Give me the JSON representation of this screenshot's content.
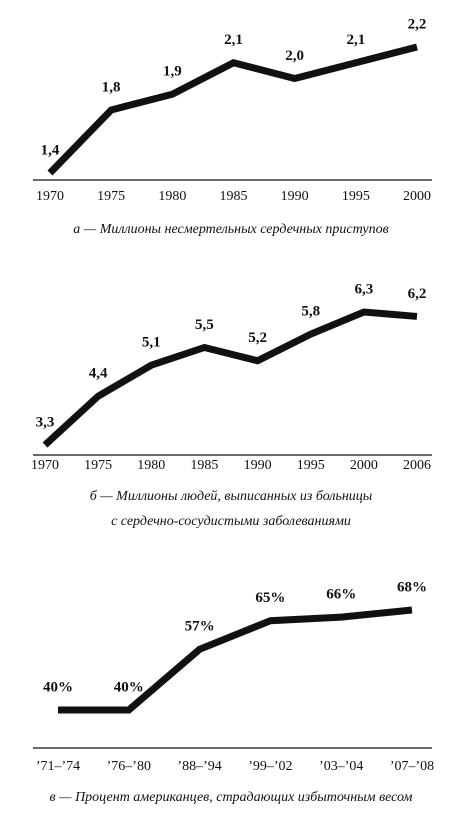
{
  "chart_data": [
    {
      "type": "line",
      "caption": [
        "а — Миллионы несмертельных сердечных приступов"
      ],
      "categories": [
        "1970",
        "1975",
        "1980",
        "1985",
        "1990",
        "1995",
        "2000"
      ],
      "values": [
        1.4,
        1.8,
        1.9,
        2.1,
        2.0,
        2.1,
        2.2
      ],
      "value_labels": [
        "1,4",
        "1,8",
        "1,9",
        "2,1",
        "2,0",
        "2,1",
        "2,2"
      ],
      "color": "#111111"
    },
    {
      "type": "line",
      "caption": [
        "б — Миллионы людей, выписанных из больницы",
        "с сердечно-сосудистыми заболеваниями"
      ],
      "categories": [
        "1970",
        "1975",
        "1980",
        "1985",
        "1990",
        "1995",
        "2000",
        "2006"
      ],
      "values": [
        3.3,
        4.4,
        5.1,
        5.5,
        5.2,
        5.8,
        6.3,
        6.2
      ],
      "value_labels": [
        "3,3",
        "4,4",
        "5,1",
        "5,5",
        "5,2",
        "5,8",
        "6,3",
        "6,2"
      ],
      "color": "#111111"
    },
    {
      "type": "line",
      "caption": [
        "в — Процент американцев, страдающих избыточным весом"
      ],
      "categories": [
        "’71–’74",
        "’76–’80",
        "’88–’94",
        "’99–’02",
        "’03–’04",
        "’07–’08"
      ],
      "values": [
        40,
        40,
        57,
        65,
        66,
        68
      ],
      "value_labels": [
        "40%",
        "40%",
        "57%",
        "65%",
        "66%",
        "68%"
      ],
      "color": "#111111"
    }
  ]
}
